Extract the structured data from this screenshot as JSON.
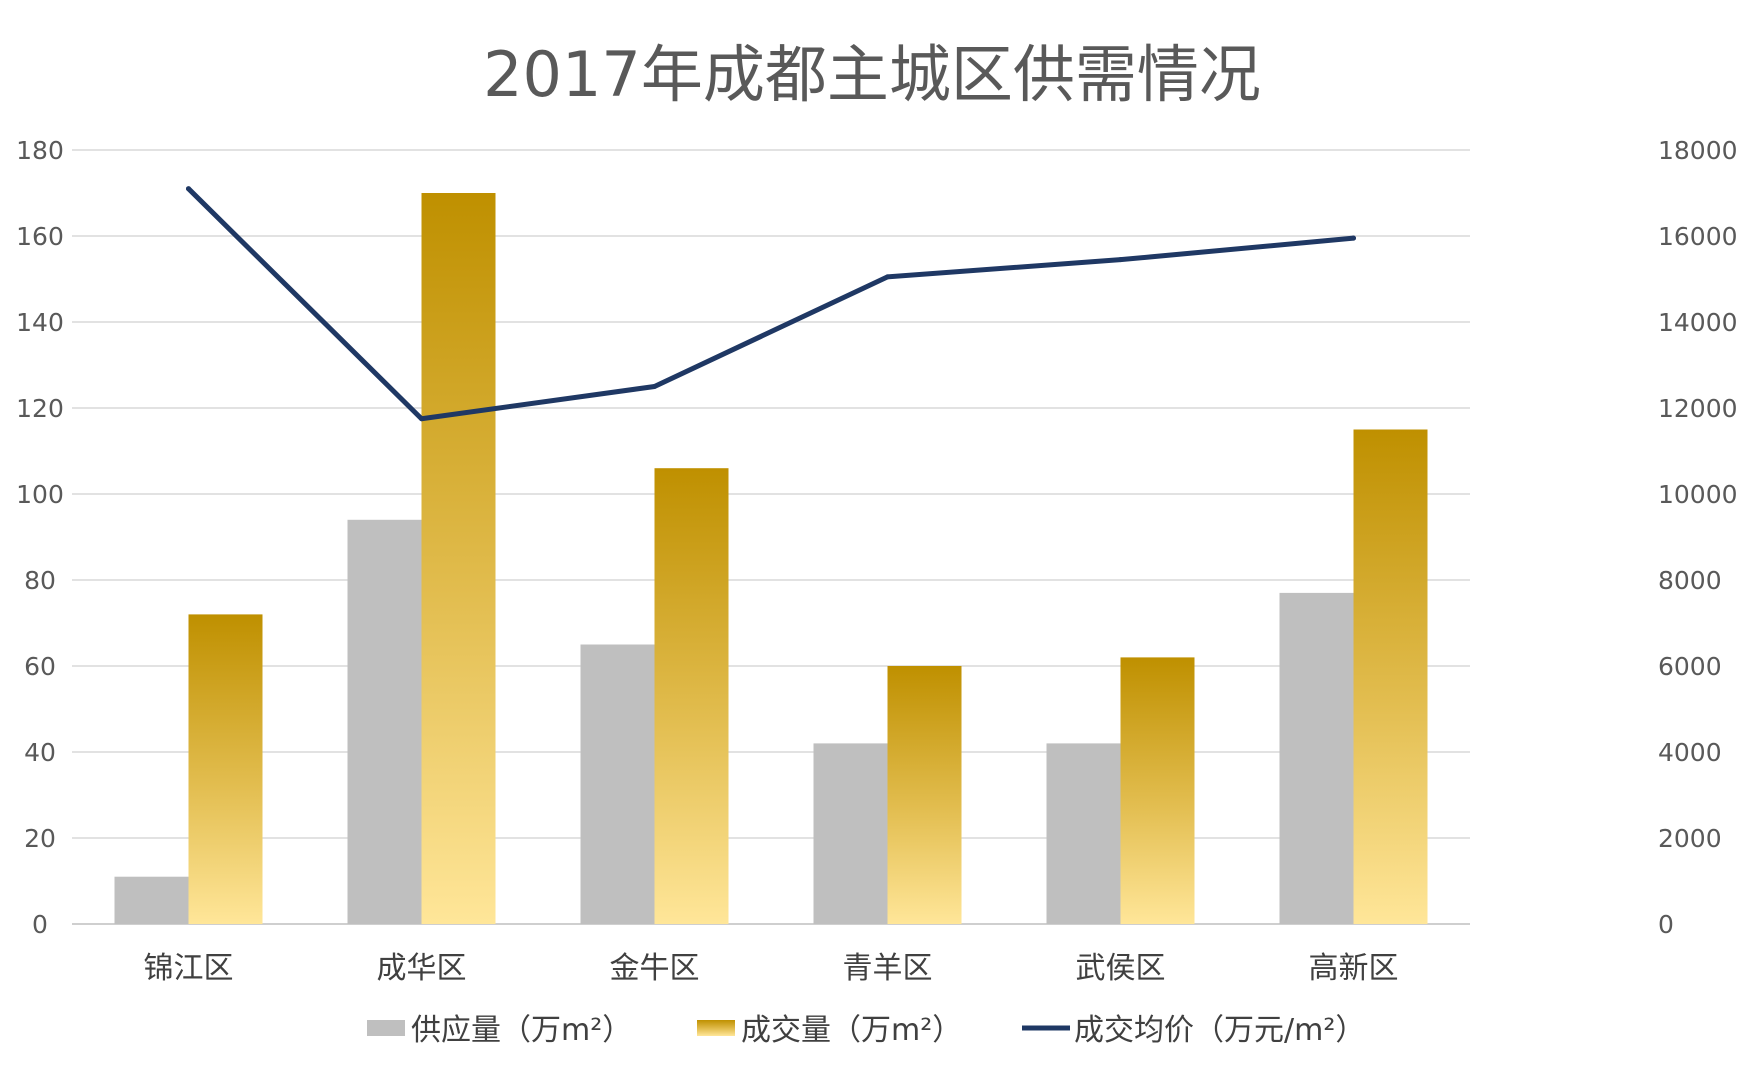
{
  "chart_data": {
    "type": "bar",
    "title": "2017年成都主城区供需情况",
    "categories": [
      "锦江区",
      "成华区",
      "金牛区",
      "青羊区",
      "武侯区",
      "高新区"
    ],
    "series": [
      {
        "name": "供应量（万m²）",
        "type": "bar",
        "axis": "left",
        "color": "#bfbfbf",
        "values": [
          11,
          94,
          65,
          42,
          42,
          77
        ]
      },
      {
        "name": "成交量（万m²）",
        "type": "bar",
        "axis": "left",
        "color": "#c09100",
        "values": [
          72,
          170,
          106,
          60,
          62,
          115
        ]
      },
      {
        "name": "成交均价（万元/m²）",
        "type": "line",
        "axis": "right",
        "color": "#1f3864",
        "values": [
          17100,
          11750,
          12500,
          15050,
          15450,
          15950
        ]
      }
    ],
    "y_left": {
      "ylim": [
        0,
        180
      ],
      "ticks": [
        "0",
        "20",
        "40",
        "60",
        "80",
        "100",
        "120",
        "140",
        "160",
        "180"
      ]
    },
    "y_right": {
      "ylim": [
        0,
        18000
      ],
      "ticks": [
        "0",
        "2000",
        "4000",
        "6000",
        "8000",
        "10000",
        "12000",
        "14000",
        "16000",
        "18000"
      ]
    },
    "grid": true,
    "legend_position": "bottom"
  }
}
